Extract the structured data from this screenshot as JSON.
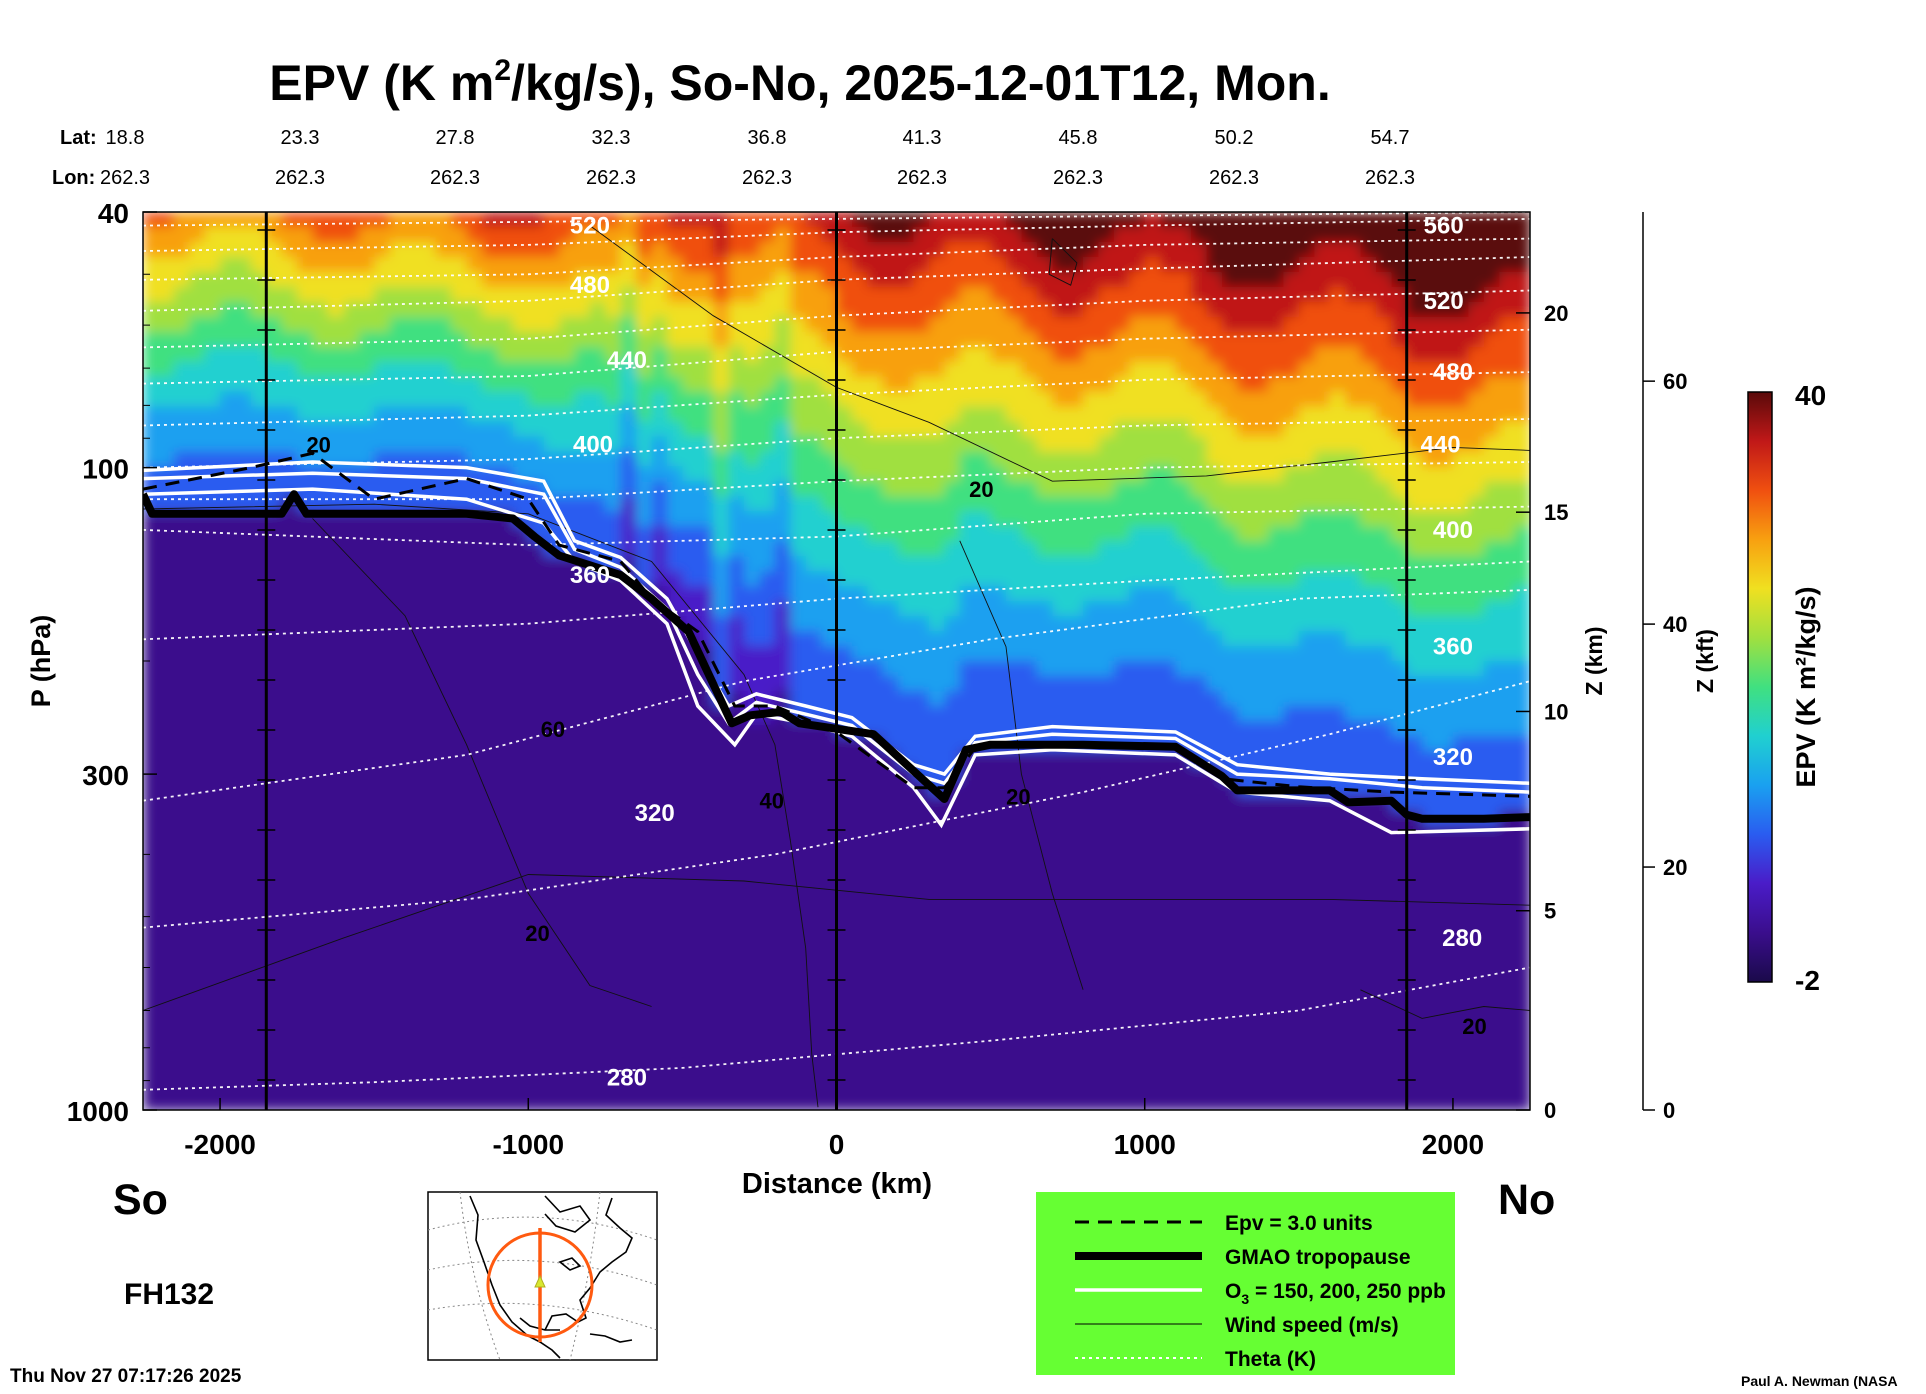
{
  "chart_data": {
    "type": "heatmap",
    "title_parts": {
      "pre": "EPV (K m",
      "sup": "2",
      "post": "/kg/s), So-No, 2025-12-01T12, Mon."
    },
    "xlabel": "Distance (km)",
    "ylabel": "P (hPa)",
    "xlim": [
      -2250,
      2250
    ],
    "x_ticks": [
      -2000,
      -1000,
      0,
      1000,
      2000
    ],
    "x_tick_labels": [
      "-2000",
      "-1000",
      "0",
      "1000",
      "2000"
    ],
    "y_scale": "log",
    "ylim": [
      1000,
      40
    ],
    "y_ticks": [
      40,
      100,
      300,
      1000
    ],
    "y_tick_labels": [
      "40",
      "100",
      "300",
      "1000"
    ],
    "z_km_label": "Z (km)",
    "z_km_ticks": [
      0,
      5,
      10,
      15,
      20
    ],
    "z_km_tick_labels": [
      "0",
      "5",
      "10",
      "15",
      "20"
    ],
    "z_kft_label": "Z (kft)",
    "z_kft_ticks": [
      0,
      20,
      40,
      60
    ],
    "z_kft_tick_labels": [
      "0",
      "20",
      "40",
      "60"
    ],
    "lat_label": "Lat:",
    "lon_label": "Lon:",
    "lat_values": [
      "18.8",
      "23.3",
      "27.8",
      "32.3",
      "36.8",
      "41.3",
      "45.8",
      "50.2",
      "54.7"
    ],
    "lon_values": [
      "262.3",
      "262.3",
      "262.3",
      "262.3",
      "262.3",
      "262.3",
      "262.3",
      "262.3",
      "262.3"
    ],
    "vertical_markers_km": [
      -1850,
      0,
      1850
    ],
    "colorbar": {
      "label": "EPV (K m²/kg/s)",
      "min": -2,
      "max": 40,
      "min_label": "-2",
      "max_label": "40"
    },
    "epv_palette": [
      "#1a0a4a",
      "#3a0e8c",
      "#4a1cc8",
      "#2a5cf0",
      "#1aa0f0",
      "#20d0d0",
      "#40e080",
      "#a0e040",
      "#f0e020",
      "#f8a010",
      "#f05010",
      "#c01818",
      "#5a0a0a"
    ],
    "theta_contours": [
      {
        "label": "280",
        "points": [
          [
            -2250,
            930
          ],
          [
            -1500,
            905
          ],
          [
            -500,
            860
          ],
          [
            500,
            780
          ],
          [
            1500,
            700
          ],
          [
            2250,
            600
          ]
        ]
      },
      {
        "label": "280",
        "points": [
          [
            -2250,
            520
          ],
          [
            -1200,
            470
          ],
          [
            -200,
            400
          ],
          [
            800,
            320
          ],
          [
            1600,
            260
          ],
          [
            2250,
            215
          ]
        ]
      },
      {
        "label": "320",
        "points": [
          [
            -2250,
            330
          ],
          [
            -1200,
            280
          ],
          [
            -300,
            215
          ],
          [
            500,
            185
          ],
          [
            1500,
            160
          ],
          [
            2250,
            155
          ]
        ]
      },
      {
        "label": "320",
        "points": [
          [
            -2250,
            185
          ],
          [
            -1000,
            175
          ],
          [
            0,
            160
          ],
          [
            1000,
            150
          ],
          [
            2250,
            140
          ]
        ]
      },
      {
        "label": "360",
        "points": [
          [
            -2250,
            125
          ],
          [
            -1000,
            132
          ],
          [
            0,
            128
          ],
          [
            1000,
            118
          ],
          [
            2250,
            115
          ]
        ]
      },
      {
        "label": "360",
        "points": [
          [
            -2250,
            112
          ],
          [
            -1000,
            112
          ],
          [
            0,
            105
          ],
          [
            1000,
            100
          ],
          [
            2250,
            98
          ]
        ]
      },
      {
        "label": "400",
        "points": [
          [
            -2250,
            100
          ],
          [
            -1000,
            97
          ],
          [
            0,
            90
          ],
          [
            1000,
            86
          ],
          [
            2250,
            84
          ]
        ]
      },
      {
        "label": "400",
        "points": [
          [
            -2250,
            86
          ],
          [
            -1000,
            83
          ],
          [
            0,
            77
          ],
          [
            1000,
            73
          ],
          [
            2250,
            71
          ]
        ]
      },
      {
        "label": "440",
        "points": [
          [
            -2250,
            74
          ],
          [
            -1000,
            72
          ],
          [
            0,
            66
          ],
          [
            1000,
            63
          ],
          [
            2250,
            61
          ]
        ]
      },
      {
        "label": "440",
        "points": [
          [
            -2250,
            65
          ],
          [
            -1000,
            63
          ],
          [
            0,
            58
          ],
          [
            1000,
            55
          ],
          [
            2250,
            53
          ]
        ]
      },
      {
        "label": "480",
        "points": [
          [
            -2250,
            57
          ],
          [
            -1000,
            55
          ],
          [
            0,
            51
          ],
          [
            1000,
            49
          ],
          [
            2250,
            47
          ]
        ]
      },
      {
        "label": "480",
        "points": [
          [
            -2250,
            51
          ],
          [
            -1000,
            50
          ],
          [
            0,
            47
          ],
          [
            1000,
            45
          ],
          [
            2250,
            44
          ]
        ]
      },
      {
        "label": "520",
        "points": [
          [
            -2250,
            46
          ],
          [
            -1000,
            45
          ],
          [
            0,
            43
          ],
          [
            1000,
            42
          ],
          [
            2250,
            41
          ]
        ]
      },
      {
        "label": "560",
        "points": [
          [
            -2250,
            42
          ],
          [
            0,
            41
          ],
          [
            2250,
            40
          ]
        ]
      }
    ],
    "theta_labels": [
      {
        "text": "520",
        "x": -800,
        "p": 42
      },
      {
        "text": "480",
        "x": -800,
        "p": 52
      },
      {
        "text": "440",
        "x": -680,
        "p": 68
      },
      {
        "text": "400",
        "x": -790,
        "p": 92
      },
      {
        "text": "360",
        "x": -800,
        "p": 147
      },
      {
        "text": "320",
        "x": -590,
        "p": 345
      },
      {
        "text": "280",
        "x": -680,
        "p": 890
      },
      {
        "text": "560",
        "x": 1970,
        "p": 42
      },
      {
        "text": "520",
        "x": 1970,
        "p": 55
      },
      {
        "text": "480",
        "x": 2000,
        "p": 71
      },
      {
        "text": "440",
        "x": 1960,
        "p": 92
      },
      {
        "text": "400",
        "x": 2000,
        "p": 125
      },
      {
        "text": "360",
        "x": 2000,
        "p": 190
      },
      {
        "text": "320",
        "x": 2000,
        "p": 282
      },
      {
        "text": "280",
        "x": 2030,
        "p": 540
      }
    ],
    "wind_contours": [
      {
        "points": [
          [
            -2250,
            116
          ],
          [
            -1500,
            114
          ],
          [
            -1000,
            118
          ],
          [
            -600,
            140
          ],
          [
            -300,
            210
          ],
          [
            -200,
            270
          ],
          [
            -150,
            380
          ],
          [
            -100,
            560
          ],
          [
            -80,
            820
          ],
          [
            -60,
            990
          ]
        ]
      },
      {
        "points": [
          [
            -800,
            42
          ],
          [
            -400,
            58
          ],
          [
            0,
            75
          ],
          [
            300,
            85
          ],
          [
            700,
            105
          ],
          [
            1200,
            103
          ],
          [
            1600,
            98
          ],
          [
            2000,
            93
          ],
          [
            2250,
            94
          ]
        ]
      },
      {
        "points": [
          [
            -1700,
            120
          ],
          [
            -1400,
            170
          ],
          [
            -1200,
            270
          ],
          [
            -1000,
            460
          ],
          [
            -800,
            640
          ],
          [
            -600,
            690
          ]
        ]
      },
      {
        "points": [
          [
            400,
            130
          ],
          [
            550,
            190
          ],
          [
            600,
            300
          ],
          [
            700,
            460
          ],
          [
            800,
            650
          ]
        ]
      },
      {
        "points": [
          [
            -2250,
            700
          ],
          [
            -1600,
            540
          ],
          [
            -1000,
            430
          ],
          [
            -300,
            440
          ],
          [
            300,
            470
          ],
          [
            1000,
            470
          ],
          [
            1600,
            470
          ],
          [
            2250,
            480
          ]
        ]
      },
      {
        "points": [
          [
            1700,
            650
          ],
          [
            1900,
            720
          ],
          [
            2100,
            690
          ],
          [
            2250,
            700
          ]
        ]
      },
      {
        "points": [
          [
            700,
            44
          ],
          [
            780,
            48
          ],
          [
            760,
            52
          ],
          [
            690,
            50
          ],
          [
            700,
            44
          ]
        ]
      }
    ],
    "wind_labels": [
      {
        "text": "20",
        "x": -1680,
        "p": 92
      },
      {
        "text": "20",
        "x": 470,
        "p": 108
      },
      {
        "text": "60",
        "x": -920,
        "p": 255
      },
      {
        "text": "40",
        "x": -210,
        "p": 330
      },
      {
        "text": "20",
        "x": 590,
        "p": 325
      },
      {
        "text": "20",
        "x": -970,
        "p": 530
      },
      {
        "text": "20",
        "x": 2070,
        "p": 740
      }
    ],
    "tropopause": {
      "points": [
        [
          -2250,
          110
        ],
        [
          -2220,
          118
        ],
        [
          -2100,
          118
        ],
        [
          -1800,
          118
        ],
        [
          -1760,
          110
        ],
        [
          -1720,
          118
        ],
        [
          -1200,
          118
        ],
        [
          -1050,
          120
        ],
        [
          -980,
          128
        ],
        [
          -900,
          137
        ],
        [
          -700,
          147
        ],
        [
          -600,
          160
        ],
        [
          -480,
          180
        ],
        [
          -340,
          250
        ],
        [
          -280,
          243
        ],
        [
          -180,
          240
        ],
        [
          -120,
          250
        ],
        [
          0,
          255
        ],
        [
          120,
          260
        ],
        [
          300,
          312
        ],
        [
          350,
          328
        ],
        [
          420,
          275
        ],
        [
          500,
          270
        ],
        [
          800,
          270
        ],
        [
          1100,
          272
        ],
        [
          1250,
          302
        ],
        [
          1300,
          318
        ],
        [
          1600,
          318
        ],
        [
          1660,
          332
        ],
        [
          1800,
          330
        ],
        [
          1850,
          347
        ],
        [
          1900,
          352
        ],
        [
          2100,
          352
        ],
        [
          2250,
          350
        ]
      ]
    },
    "o3_contours": [
      {
        "points": [
          [
            -2250,
            101
          ],
          [
            -1700,
            98
          ],
          [
            -1200,
            100
          ],
          [
            -950,
            105
          ],
          [
            -850,
            130
          ],
          [
            -700,
            138
          ],
          [
            -550,
            160
          ],
          [
            -450,
            195
          ],
          [
            -350,
            235
          ],
          [
            -260,
            225
          ],
          [
            -100,
            235
          ],
          [
            50,
            245
          ],
          [
            250,
            290
          ],
          [
            350,
            300
          ],
          [
            450,
            262
          ],
          [
            700,
            253
          ],
          [
            1100,
            258
          ],
          [
            1300,
            290
          ],
          [
            1600,
            300
          ],
          [
            1900,
            305
          ],
          [
            2250,
            310
          ]
        ]
      },
      {
        "points": [
          [
            -2250,
            104
          ],
          [
            -1700,
            102
          ],
          [
            -1200,
            104
          ],
          [
            -950,
            110
          ],
          [
            -850,
            134
          ],
          [
            -700,
            143
          ],
          [
            -550,
            166
          ],
          [
            -450,
            210
          ],
          [
            -350,
            250
          ],
          [
            -260,
            232
          ],
          [
            -100,
            242
          ],
          [
            50,
            252
          ],
          [
            250,
            300
          ],
          [
            350,
            310
          ],
          [
            450,
            268
          ],
          [
            700,
            260
          ],
          [
            1100,
            264
          ],
          [
            1300,
            300
          ],
          [
            1600,
            305
          ],
          [
            1900,
            315
          ],
          [
            2250,
            320
          ]
        ]
      },
      {
        "points": [
          [
            -2250,
            110
          ],
          [
            -1700,
            108
          ],
          [
            -1200,
            112
          ],
          [
            -950,
            122
          ],
          [
            -850,
            140
          ],
          [
            -700,
            150
          ],
          [
            -550,
            175
          ],
          [
            -450,
            235
          ],
          [
            -330,
            270
          ],
          [
            -260,
            242
          ],
          [
            -100,
            250
          ],
          [
            50,
            262
          ],
          [
            250,
            315
          ],
          [
            340,
            360
          ],
          [
            450,
            280
          ],
          [
            700,
            275
          ],
          [
            1100,
            280
          ],
          [
            1300,
            320
          ],
          [
            1600,
            330
          ],
          [
            1800,
            370
          ],
          [
            2250,
            365
          ]
        ]
      }
    ],
    "epv3_contour": {
      "points": [
        [
          -2250,
          108
        ],
        [
          -1900,
          100
        ],
        [
          -1700,
          95
        ],
        [
          -1500,
          112
        ],
        [
          -1200,
          104
        ],
        [
          -1000,
          112
        ],
        [
          -900,
          132
        ],
        [
          -700,
          140
        ],
        [
          -600,
          160
        ],
        [
          -450,
          180
        ],
        [
          -330,
          235
        ],
        [
          -200,
          235
        ],
        [
          0,
          258
        ],
        [
          250,
          315
        ],
        [
          350,
          315
        ],
        [
          450,
          273
        ],
        [
          800,
          268
        ],
        [
          1100,
          272
        ],
        [
          1250,
          305
        ],
        [
          1500,
          314
        ],
        [
          1800,
          320
        ],
        [
          2250,
          325
        ]
      ]
    },
    "legend": {
      "items": [
        {
          "style": "dashed",
          "label": "Epv = 3.0 units"
        },
        {
          "style": "thick",
          "label": "GMAO tropopause"
        },
        {
          "style": "double-white",
          "label": "O",
          "sub": "3",
          "label_post": " = 150, 200, 250 ppb"
        },
        {
          "style": "thin",
          "label": "Wind speed (m/s)"
        },
        {
          "style": "dotted-white",
          "label": "Theta (K)"
        }
      ]
    },
    "inset_map": {
      "description_name": "north-america-cross-section-map"
    }
  },
  "labels": {
    "south": "So",
    "north": "No",
    "forecast_hour": "FH132",
    "timestamp": "Thu Nov 27 07:17:26 2025",
    "credit": "Paul A. Newman (NASA"
  },
  "colors": {
    "legend_bg": "#66ff33",
    "tropopause": "#000000",
    "ozone": "#ffffff",
    "theta": "#ffffff",
    "map_circle": "#ff5a10",
    "map_marker": "#d8e830"
  }
}
